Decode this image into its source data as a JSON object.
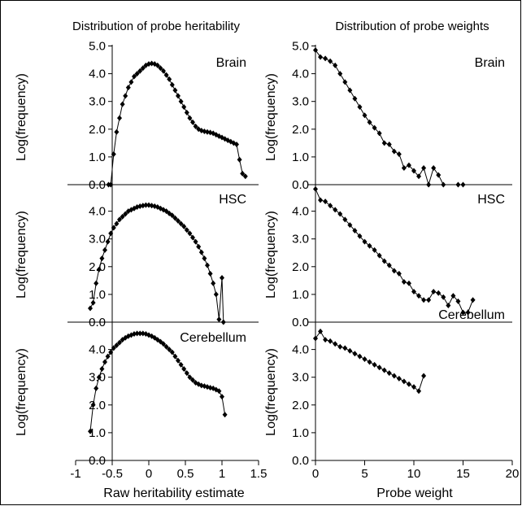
{
  "chart_data": [
    {
      "type": "line",
      "column_title": "Distribution of probe heritability",
      "xlabel": "Raw heritability estimate",
      "ylabel": "Log(frequency)",
      "xlim": [
        -1,
        1.5
      ],
      "xticks": [
        "-1",
        "-0.5",
        "0",
        "0.5",
        "1",
        "1.5"
      ],
      "xtick_values": [
        -1,
        -0.5,
        0,
        0.5,
        1,
        1.5
      ],
      "panels": [
        {
          "label": "Brain",
          "ylim": [
            0,
            5
          ],
          "yticks": [
            "0.0",
            "1.0",
            "2.0",
            "3.0",
            "4.0",
            "5.0"
          ],
          "ytick_values": [
            0,
            1,
            2,
            3,
            4,
            5
          ],
          "x": [
            -0.55,
            -0.52,
            -0.48,
            -0.44,
            -0.4,
            -0.36,
            -0.32,
            -0.28,
            -0.24,
            -0.2,
            -0.16,
            -0.12,
            -0.08,
            -0.04,
            0.0,
            0.04,
            0.08,
            0.12,
            0.16,
            0.2,
            0.24,
            0.28,
            0.32,
            0.36,
            0.4,
            0.44,
            0.48,
            0.52,
            0.56,
            0.6,
            0.64,
            0.68,
            0.72,
            0.76,
            0.8,
            0.84,
            0.88,
            0.92,
            0.96,
            1.0,
            1.04,
            1.08,
            1.12,
            1.16,
            1.2,
            1.24,
            1.28,
            1.32
          ],
          "y": [
            0.0,
            0.0,
            1.1,
            1.9,
            2.4,
            2.9,
            3.2,
            3.5,
            3.7,
            3.9,
            4.0,
            4.1,
            4.2,
            4.3,
            4.35,
            4.37,
            4.35,
            4.3,
            4.2,
            4.1,
            3.95,
            3.8,
            3.6,
            3.4,
            3.2,
            3.0,
            2.8,
            2.6,
            2.4,
            2.25,
            2.1,
            2.0,
            1.95,
            1.92,
            1.9,
            1.88,
            1.85,
            1.8,
            1.75,
            1.7,
            1.65,
            1.6,
            1.55,
            1.5,
            1.45,
            0.9,
            0.4,
            0.3
          ]
        },
        {
          "label": "HSC",
          "ylim": [
            0,
            4.8
          ],
          "yticks": [
            "0.0",
            "1.0",
            "2.0",
            "3.0",
            "4.0"
          ],
          "ytick_values": [
            0,
            1,
            2,
            3,
            4
          ],
          "x": [
            -0.8,
            -0.76,
            -0.72,
            -0.68,
            -0.64,
            -0.6,
            -0.56,
            -0.52,
            -0.48,
            -0.44,
            -0.4,
            -0.36,
            -0.32,
            -0.28,
            -0.24,
            -0.2,
            -0.16,
            -0.12,
            -0.08,
            -0.04,
            0.0,
            0.04,
            0.08,
            0.12,
            0.16,
            0.2,
            0.24,
            0.28,
            0.32,
            0.36,
            0.4,
            0.44,
            0.48,
            0.52,
            0.56,
            0.6,
            0.64,
            0.68,
            0.72,
            0.76,
            0.8,
            0.84,
            0.88,
            0.92,
            0.96,
            1.0,
            1.02
          ],
          "y": [
            0.5,
            0.7,
            1.4,
            1.9,
            2.3,
            2.6,
            2.9,
            3.2,
            3.4,
            3.55,
            3.7,
            3.8,
            3.9,
            4.0,
            4.05,
            4.1,
            4.15,
            4.18,
            4.2,
            4.22,
            4.22,
            4.2,
            4.18,
            4.15,
            4.1,
            4.05,
            4.0,
            3.92,
            3.85,
            3.75,
            3.65,
            3.55,
            3.45,
            3.32,
            3.2,
            3.05,
            2.9,
            2.72,
            2.52,
            2.3,
            2.05,
            1.75,
            1.4,
            1.0,
            0.1,
            1.6,
            0.0
          ]
        },
        {
          "label": "Cerebellum",
          "ylim": [
            0,
            4.8
          ],
          "yticks": [
            "0.0",
            "1.0",
            "2.0",
            "3.0",
            "4.0"
          ],
          "ytick_values": [
            0,
            1,
            2,
            3,
            4
          ],
          "x": [
            -0.8,
            -0.76,
            -0.72,
            -0.68,
            -0.64,
            -0.6,
            -0.56,
            -0.52,
            -0.48,
            -0.44,
            -0.4,
            -0.36,
            -0.32,
            -0.28,
            -0.24,
            -0.2,
            -0.16,
            -0.12,
            -0.08,
            -0.04,
            0.0,
            0.04,
            0.08,
            0.12,
            0.16,
            0.2,
            0.24,
            0.28,
            0.32,
            0.36,
            0.4,
            0.44,
            0.48,
            0.52,
            0.56,
            0.6,
            0.64,
            0.68,
            0.72,
            0.76,
            0.8,
            0.84,
            0.88,
            0.92,
            0.96,
            1.0,
            1.04
          ],
          "y": [
            1.05,
            2.0,
            2.6,
            3.0,
            3.3,
            3.55,
            3.75,
            3.9,
            4.05,
            4.15,
            4.25,
            4.35,
            4.42,
            4.48,
            4.52,
            4.56,
            4.58,
            4.58,
            4.58,
            4.56,
            4.52,
            4.48,
            4.42,
            4.35,
            4.28,
            4.2,
            4.1,
            4.0,
            3.9,
            3.75,
            3.6,
            3.45,
            3.3,
            3.15,
            3.0,
            2.9,
            2.8,
            2.75,
            2.7,
            2.68,
            2.65,
            2.62,
            2.6,
            2.55,
            2.5,
            2.3,
            1.65
          ]
        }
      ]
    },
    {
      "type": "line",
      "column_title": "Distribution of probe weights",
      "xlabel": "Probe weight",
      "ylabel": "Log(frequency)",
      "xlim": [
        0,
        20
      ],
      "xticks": [
        "0",
        "5",
        "10",
        "15",
        "20"
      ],
      "xtick_values": [
        0,
        5,
        10,
        15,
        20
      ],
      "panels": [
        {
          "label": "Brain",
          "ylim": [
            0,
            5
          ],
          "yticks": [
            "0.0",
            "1.0",
            "2.0",
            "3.0",
            "4.0",
            "5.0"
          ],
          "ytick_values": [
            0,
            1,
            2,
            3,
            4,
            5
          ],
          "x": [
            0.0,
            0.5,
            1.0,
            1.5,
            2.0,
            2.5,
            3.0,
            3.5,
            4.0,
            4.5,
            5.0,
            5.5,
            6.0,
            6.5,
            7.0,
            7.5,
            8.0,
            8.5,
            9.0,
            9.5,
            10.0,
            10.5,
            11.0,
            11.5,
            12.0,
            12.5,
            13.0,
            14.5,
            15.0
          ],
          "y": [
            4.85,
            4.6,
            4.55,
            4.45,
            4.3,
            4.0,
            3.7,
            3.4,
            3.1,
            2.8,
            2.5,
            2.25,
            2.05,
            1.85,
            1.5,
            1.45,
            1.2,
            1.1,
            0.6,
            0.7,
            0.5,
            0.3,
            0.6,
            0.0,
            0.6,
            0.35,
            0.0,
            0.0,
            0.0
          ]
        },
        {
          "label": "HSC",
          "ylim": [
            0,
            4.8
          ],
          "yticks": [
            "0.0",
            "1.0",
            "2.0",
            "3.0",
            "4.0"
          ],
          "ytick_values": [
            0,
            1,
            2,
            3,
            4
          ],
          "x": [
            0.0,
            0.5,
            1.0,
            1.5,
            2.0,
            2.5,
            3.0,
            3.5,
            4.0,
            4.5,
            5.0,
            5.5,
            6.0,
            6.5,
            7.0,
            7.5,
            8.0,
            8.5,
            9.0,
            9.5,
            10.0,
            10.5,
            11.0,
            11.5,
            12.0,
            12.5,
            13.0,
            13.5,
            14.0,
            14.5,
            15.0,
            15.5,
            16.0
          ],
          "y": [
            4.8,
            4.4,
            4.35,
            4.2,
            4.05,
            3.9,
            3.7,
            3.5,
            3.3,
            3.1,
            2.9,
            2.75,
            2.6,
            2.4,
            2.2,
            2.05,
            1.85,
            1.75,
            1.45,
            1.4,
            1.1,
            0.95,
            0.8,
            0.8,
            1.1,
            1.05,
            0.9,
            0.6,
            0.95,
            0.75,
            0.35,
            0.35,
            0.8
          ]
        },
        {
          "label": "Cerebellum",
          "ylim": [
            0,
            4.8
          ],
          "yticks": [
            "0.0",
            "1.0",
            "2.0",
            "3.0",
            "4.0"
          ],
          "ytick_values": [
            0,
            1,
            2,
            3,
            4
          ],
          "x": [
            0.0,
            0.5,
            1.0,
            1.5,
            2.0,
            2.5,
            3.0,
            3.5,
            4.0,
            4.5,
            5.0,
            5.5,
            6.0,
            6.5,
            7.0,
            7.5,
            8.0,
            8.5,
            9.0,
            9.5,
            10.0,
            10.5,
            11.0
          ],
          "y": [
            4.4,
            4.65,
            4.35,
            4.3,
            4.2,
            4.1,
            4.05,
            3.95,
            3.85,
            3.75,
            3.65,
            3.55,
            3.45,
            3.35,
            3.25,
            3.15,
            3.05,
            2.95,
            2.85,
            2.75,
            2.65,
            2.5,
            3.05
          ]
        }
      ]
    }
  ]
}
